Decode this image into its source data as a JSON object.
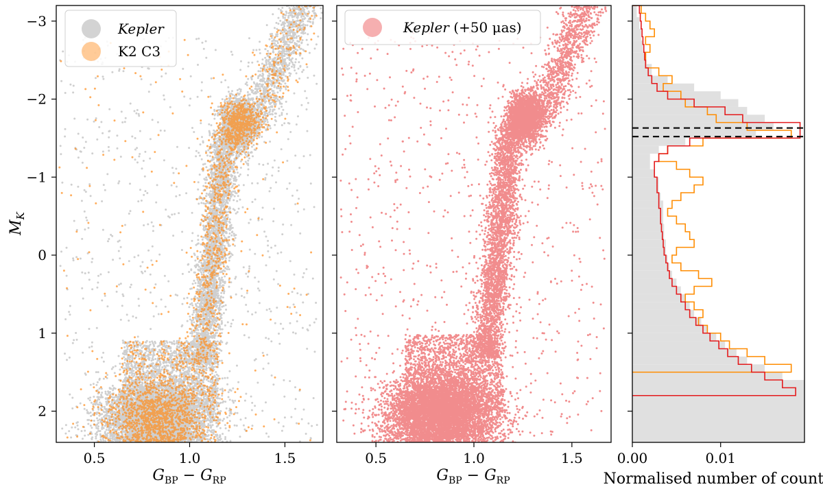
{
  "chart_data": [
    {
      "type": "scatter",
      "panel": "left",
      "xlim": [
        0.3,
        1.7
      ],
      "ylim": [
        2.4,
        -3.2
      ],
      "x_ticks": [
        0.5,
        1.0,
        1.5
      ],
      "x_tick_labels": [
        "0.5",
        "1.0",
        "1.5"
      ],
      "y_ticks": [
        -3,
        -2,
        -1,
        0,
        1,
        2
      ],
      "y_tick_labels": [
        "−3",
        "−2",
        "−1",
        "0",
        "1",
        "2"
      ],
      "xlabel": "G_BP − G_RP",
      "xlabel_main": "G",
      "xlabel_sub1": "BP",
      "xlabel_minus": " − ",
      "xlabel_sub2": "RP",
      "ylabel": "M_K",
      "ylabel_main": "M",
      "ylabel_sub": "K",
      "legend_position": "top-left",
      "series": [
        {
          "name": "Kepler",
          "color": "#a8a8a8",
          "description": "dense grey point cloud: main sequence near x 0.6-1.1, y 1.5-2.4; giant branch rising from x~1.05 to red clump at x~1.25, y~-1.7; upper giant branch to x~1.6, y~-3.2"
        },
        {
          "name": "K2 C3",
          "color": "#ff8c1a",
          "description": "orange points following same sequence, fewer in number"
        }
      ]
    },
    {
      "type": "scatter",
      "panel": "middle",
      "xlim": [
        0.3,
        1.7
      ],
      "ylim": [
        2.4,
        -3.2
      ],
      "x_ticks": [
        0.5,
        1.0,
        1.5
      ],
      "x_tick_labels": [
        "0.5",
        "1.0",
        "1.5"
      ],
      "xlabel": "G_BP − G_RP",
      "legend_position": "top-left",
      "series": [
        {
          "name": "Kepler (+50 μas)",
          "name_main": "Kepler",
          "name_suffix": " (+50 μas)",
          "color": "#e41a1c",
          "description": "red points, same distribution shifted slightly brighter"
        }
      ]
    },
    {
      "type": "histogram",
      "panel": "right",
      "orientation": "horizontal",
      "xlim": [
        0.0,
        0.0195
      ],
      "ylim": [
        2.4,
        -3.2
      ],
      "x_ticks": [
        0.0,
        0.01
      ],
      "x_tick_labels": [
        "0.00",
        "0.01"
      ],
      "xlabel": "Normalised number of counts",
      "hlines": [
        -1.63,
        -1.52
      ],
      "series": [
        {
          "name": "Kepler",
          "style": "filled",
          "color": "#e0e0e0",
          "bins": [
            [
              -3.2,
              -3.05,
              0.0005
            ],
            [
              -3.05,
              -2.9,
              0.0008
            ],
            [
              -2.9,
              -2.75,
              0.001
            ],
            [
              -2.75,
              -2.6,
              0.0012
            ],
            [
              -2.6,
              -2.45,
              0.0016
            ],
            [
              -2.45,
              -2.3,
              0.0022
            ],
            [
              -2.3,
              -2.2,
              0.004
            ],
            [
              -2.2,
              -2.1,
              0.007
            ],
            [
              -2.1,
              -2.0,
              0.01
            ],
            [
              -2.0,
              -1.9,
              0.012
            ],
            [
              -1.9,
              -1.8,
              0.013
            ],
            [
              -1.8,
              -1.7,
              0.015
            ],
            [
              -1.7,
              -1.6,
              0.016
            ],
            [
              -1.6,
              -1.5,
              0.014
            ],
            [
              -1.5,
              -1.4,
              0.006
            ],
            [
              -1.4,
              -1.3,
              0.003
            ],
            [
              -1.3,
              -1.2,
              0.002
            ],
            [
              -1.2,
              -1.1,
              0.002
            ],
            [
              -1.1,
              -1.0,
              0.0025
            ],
            [
              -1.0,
              -0.9,
              0.003
            ],
            [
              -0.9,
              -0.8,
              0.003
            ],
            [
              -0.8,
              -0.7,
              0.0032
            ],
            [
              -0.7,
              -0.6,
              0.0035
            ],
            [
              -0.6,
              -0.5,
              0.0035
            ],
            [
              -0.5,
              -0.4,
              0.0035
            ],
            [
              -0.4,
              -0.3,
              0.0036
            ],
            [
              -0.3,
              -0.2,
              0.0036
            ],
            [
              -0.2,
              -0.1,
              0.0038
            ],
            [
              -0.1,
              0.0,
              0.0038
            ],
            [
              0.0,
              0.1,
              0.004
            ],
            [
              0.1,
              0.2,
              0.0042
            ],
            [
              0.2,
              0.3,
              0.0045
            ],
            [
              0.3,
              0.4,
              0.005
            ],
            [
              0.4,
              0.5,
              0.0055
            ],
            [
              0.5,
              0.6,
              0.006
            ],
            [
              0.6,
              0.7,
              0.0065
            ],
            [
              0.7,
              0.8,
              0.007
            ],
            [
              0.8,
              0.9,
              0.0078
            ],
            [
              0.9,
              1.0,
              0.0085
            ],
            [
              1.0,
              1.1,
              0.0095
            ],
            [
              1.1,
              1.2,
              0.0105
            ],
            [
              1.2,
              1.3,
              0.0118
            ],
            [
              1.3,
              1.4,
              0.013
            ],
            [
              1.4,
              1.5,
              0.015
            ],
            [
              1.5,
              1.6,
              0.017
            ],
            [
              1.6,
              2.4,
              0.0195
            ]
          ]
        },
        {
          "name": "K2 C3",
          "style": "step",
          "color": "#ff8c00",
          "bins": [
            [
              -3.2,
              -3.1,
              0.001
            ],
            [
              -3.1,
              -3.0,
              0.0015
            ],
            [
              -3.0,
              -2.9,
              0.002
            ],
            [
              -2.9,
              -2.8,
              0.0025
            ],
            [
              -2.8,
              -2.7,
              0.0015
            ],
            [
              -2.7,
              -2.6,
              0.002
            ],
            [
              -2.6,
              -2.5,
              0.0015
            ],
            [
              -2.5,
              -2.4,
              0.0015
            ],
            [
              -2.4,
              -2.3,
              0.003
            ],
            [
              -2.3,
              -2.2,
              0.0045
            ],
            [
              -2.2,
              -2.1,
              0.0035
            ],
            [
              -2.1,
              -2.0,
              0.0055
            ],
            [
              -2.0,
              -1.9,
              0.006
            ],
            [
              -1.9,
              -1.8,
              0.0085
            ],
            [
              -1.8,
              -1.7,
              0.0095
            ],
            [
              -1.7,
              -1.6,
              0.013
            ],
            [
              -1.6,
              -1.5,
              0.018
            ],
            [
              -1.5,
              -1.4,
              0.008
            ],
            [
              -1.4,
              -1.3,
              0.004
            ],
            [
              -1.3,
              -1.2,
              0.003
            ],
            [
              -1.2,
              -1.1,
              0.005
            ],
            [
              -1.1,
              -1.0,
              0.0065
            ],
            [
              -1.0,
              -0.9,
              0.008
            ],
            [
              -0.9,
              -0.8,
              0.007
            ],
            [
              -0.8,
              -0.7,
              0.0055
            ],
            [
              -0.7,
              -0.6,
              0.0045
            ],
            [
              -0.6,
              -0.5,
              0.004
            ],
            [
              -0.5,
              -0.4,
              0.005
            ],
            [
              -0.4,
              -0.3,
              0.006
            ],
            [
              -0.3,
              -0.2,
              0.0065
            ],
            [
              -0.2,
              -0.1,
              0.007
            ],
            [
              -0.1,
              0.0,
              0.005
            ],
            [
              0.0,
              0.1,
              0.0045
            ],
            [
              0.1,
              0.2,
              0.0055
            ],
            [
              0.2,
              0.3,
              0.0075
            ],
            [
              0.3,
              0.4,
              0.009
            ],
            [
              0.4,
              0.5,
              0.007
            ],
            [
              0.5,
              0.6,
              0.006
            ],
            [
              0.6,
              0.7,
              0.007
            ],
            [
              0.7,
              0.8,
              0.008
            ],
            [
              0.8,
              0.9,
              0.0075
            ],
            [
              0.9,
              1.0,
              0.0085
            ],
            [
              1.0,
              1.1,
              0.01
            ],
            [
              1.1,
              1.2,
              0.011
            ],
            [
              1.2,
              1.3,
              0.013
            ],
            [
              1.3,
              1.4,
              0.015
            ],
            [
              1.4,
              1.5,
              0.018
            ]
          ]
        },
        {
          "name": "Kepler (+50 μas)",
          "style": "step",
          "color": "#e41a1c",
          "bins": [
            [
              -3.2,
              -3.1,
              0.0008
            ],
            [
              -3.1,
              -3.0,
              0.0009
            ],
            [
              -3.0,
              -2.9,
              0.001
            ],
            [
              -2.9,
              -2.8,
              0.0011
            ],
            [
              -2.8,
              -2.7,
              0.0012
            ],
            [
              -2.7,
              -2.6,
              0.0013
            ],
            [
              -2.6,
              -2.5,
              0.0014
            ],
            [
              -2.5,
              -2.4,
              0.0015
            ],
            [
              -2.4,
              -2.3,
              0.0018
            ],
            [
              -2.3,
              -2.2,
              0.0022
            ],
            [
              -2.2,
              -2.1,
              0.0028
            ],
            [
              -2.1,
              -2.0,
              0.004
            ],
            [
              -2.0,
              -1.9,
              0.007
            ],
            [
              -1.9,
              -1.8,
              0.0105
            ],
            [
              -1.8,
              -1.7,
              0.0125
            ],
            [
              -1.7,
              -1.6,
              0.019
            ],
            [
              -1.6,
              -1.5,
              0.019
            ],
            [
              -1.5,
              -1.4,
              0.0065
            ],
            [
              -1.4,
              -1.3,
              0.004
            ],
            [
              -1.3,
              -1.2,
              0.003
            ],
            [
              -1.2,
              -1.1,
              0.0025
            ],
            [
              -1.1,
              -1.0,
              0.0025
            ],
            [
              -1.0,
              -0.9,
              0.0028
            ],
            [
              -0.9,
              -0.8,
              0.0028
            ],
            [
              -0.8,
              -0.7,
              0.003
            ],
            [
              -0.7,
              -0.6,
              0.003
            ],
            [
              -0.6,
              -0.5,
              0.0032
            ],
            [
              -0.5,
              -0.4,
              0.0032
            ],
            [
              -0.4,
              -0.3,
              0.0033
            ],
            [
              -0.3,
              -0.2,
              0.0034
            ],
            [
              -0.2,
              -0.1,
              0.0035
            ],
            [
              -0.1,
              0.0,
              0.0036
            ],
            [
              0.0,
              0.1,
              0.0038
            ],
            [
              0.1,
              0.2,
              0.004
            ],
            [
              0.2,
              0.3,
              0.0042
            ],
            [
              0.3,
              0.4,
              0.0045
            ],
            [
              0.4,
              0.5,
              0.005
            ],
            [
              0.5,
              0.6,
              0.0055
            ],
            [
              0.6,
              0.7,
              0.006
            ],
            [
              0.7,
              0.8,
              0.0065
            ],
            [
              0.8,
              0.9,
              0.0072
            ],
            [
              0.9,
              1.0,
              0.008
            ],
            [
              1.0,
              1.1,
              0.0088
            ],
            [
              1.1,
              1.2,
              0.0098
            ],
            [
              1.2,
              1.3,
              0.0108
            ],
            [
              1.3,
              1.4,
              0.012
            ],
            [
              1.4,
              1.5,
              0.0135
            ],
            [
              1.5,
              1.6,
              0.015
            ],
            [
              1.6,
              1.7,
              0.017
            ],
            [
              1.7,
              1.8,
              0.0185
            ]
          ]
        }
      ]
    }
  ]
}
